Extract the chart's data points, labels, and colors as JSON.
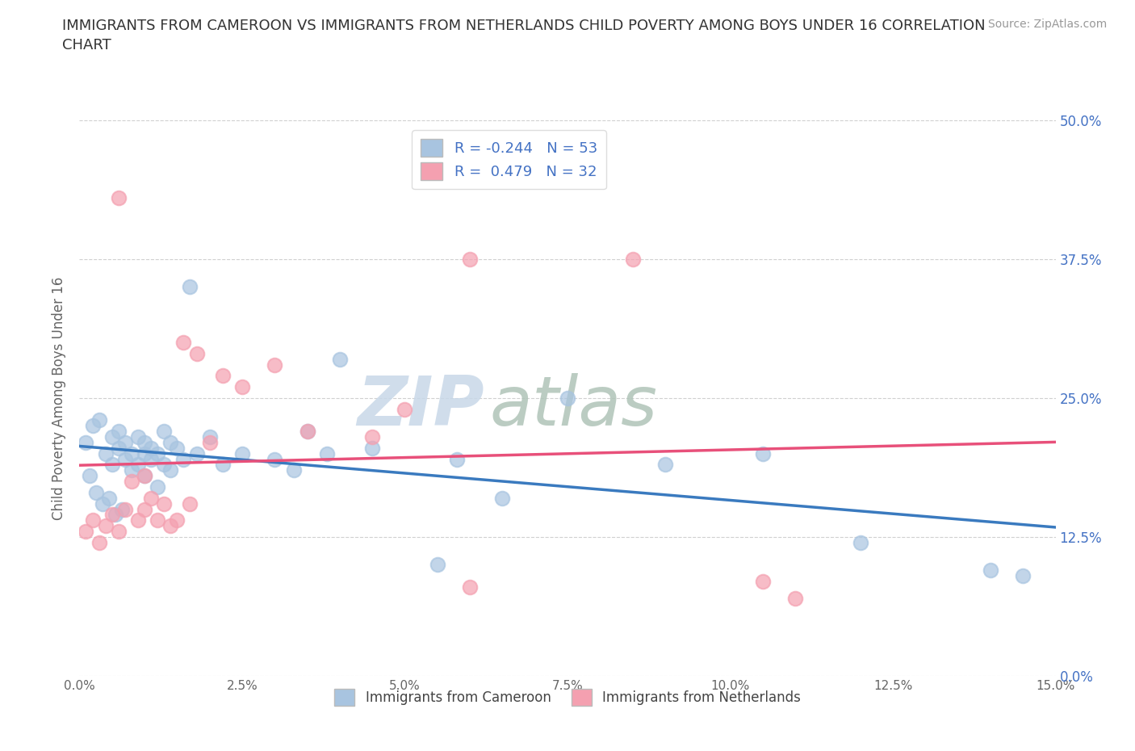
{
  "title": "IMMIGRANTS FROM CAMEROON VS IMMIGRANTS FROM NETHERLANDS CHILD POVERTY AMONG BOYS UNDER 16 CORRELATION\nCHART",
  "source_text": "Source: ZipAtlas.com",
  "xlabel_vals": [
    0.0,
    2.5,
    5.0,
    7.5,
    10.0,
    12.5,
    15.0
  ],
  "ylabel": "Child Poverty Among Boys Under 16",
  "ylabel_vals": [
    0.0,
    12.5,
    25.0,
    37.5,
    50.0
  ],
  "xlim": [
    0.0,
    15.0
  ],
  "ylim": [
    0.0,
    50.0
  ],
  "cameroon_R": -0.244,
  "cameroon_N": 53,
  "netherlands_R": 0.479,
  "netherlands_N": 32,
  "cameroon_color": "#a8c4e0",
  "netherlands_color": "#f4a0b0",
  "cameroon_line_color": "#3a7abf",
  "netherlands_line_color": "#e8507a",
  "dashed_line_color": "#c8b8d8",
  "watermark_color_zip": "#c8d8e8",
  "watermark_color_atlas": "#b8c8d8",
  "background_color": "#ffffff",
  "cameroon_x": [
    0.1,
    0.2,
    0.3,
    0.4,
    0.5,
    0.5,
    0.6,
    0.6,
    0.7,
    0.7,
    0.8,
    0.8,
    0.9,
    0.9,
    1.0,
    1.0,
    1.0,
    1.1,
    1.1,
    1.2,
    1.2,
    1.3,
    1.3,
    1.4,
    1.4,
    1.5,
    1.6,
    1.7,
    1.8,
    2.0,
    2.2,
    2.5,
    3.0,
    3.3,
    3.5,
    3.8,
    4.0,
    4.5,
    5.5,
    5.8,
    6.5,
    7.5,
    9.0,
    10.5,
    12.0,
    14.0,
    14.5,
    0.15,
    0.25,
    0.35,
    0.45,
    0.55,
    0.65
  ],
  "cameroon_y": [
    21.0,
    22.5,
    23.0,
    20.0,
    21.5,
    19.0,
    20.5,
    22.0,
    21.0,
    19.5,
    20.0,
    18.5,
    21.5,
    19.0,
    20.0,
    21.0,
    18.0,
    20.5,
    19.5,
    20.0,
    17.0,
    22.0,
    19.0,
    21.0,
    18.5,
    20.5,
    19.5,
    35.0,
    20.0,
    21.5,
    19.0,
    20.0,
    19.5,
    18.5,
    22.0,
    20.0,
    28.5,
    20.5,
    10.0,
    19.5,
    16.0,
    25.0,
    19.0,
    20.0,
    12.0,
    9.5,
    9.0,
    18.0,
    16.5,
    15.5,
    16.0,
    14.5,
    15.0
  ],
  "netherlands_x": [
    0.1,
    0.2,
    0.3,
    0.4,
    0.5,
    0.6,
    0.6,
    0.7,
    0.8,
    0.9,
    1.0,
    1.0,
    1.1,
    1.2,
    1.3,
    1.4,
    1.5,
    1.6,
    1.7,
    1.8,
    2.0,
    2.2,
    2.5,
    3.0,
    3.5,
    4.5,
    5.0,
    6.0,
    6.0,
    8.5,
    10.5,
    11.0
  ],
  "netherlands_y": [
    13.0,
    14.0,
    12.0,
    13.5,
    14.5,
    13.0,
    43.0,
    15.0,
    17.5,
    14.0,
    15.0,
    18.0,
    16.0,
    14.0,
    15.5,
    13.5,
    14.0,
    30.0,
    15.5,
    29.0,
    21.0,
    27.0,
    26.0,
    28.0,
    22.0,
    21.5,
    24.0,
    8.0,
    37.5,
    37.5,
    8.5,
    7.0
  ]
}
